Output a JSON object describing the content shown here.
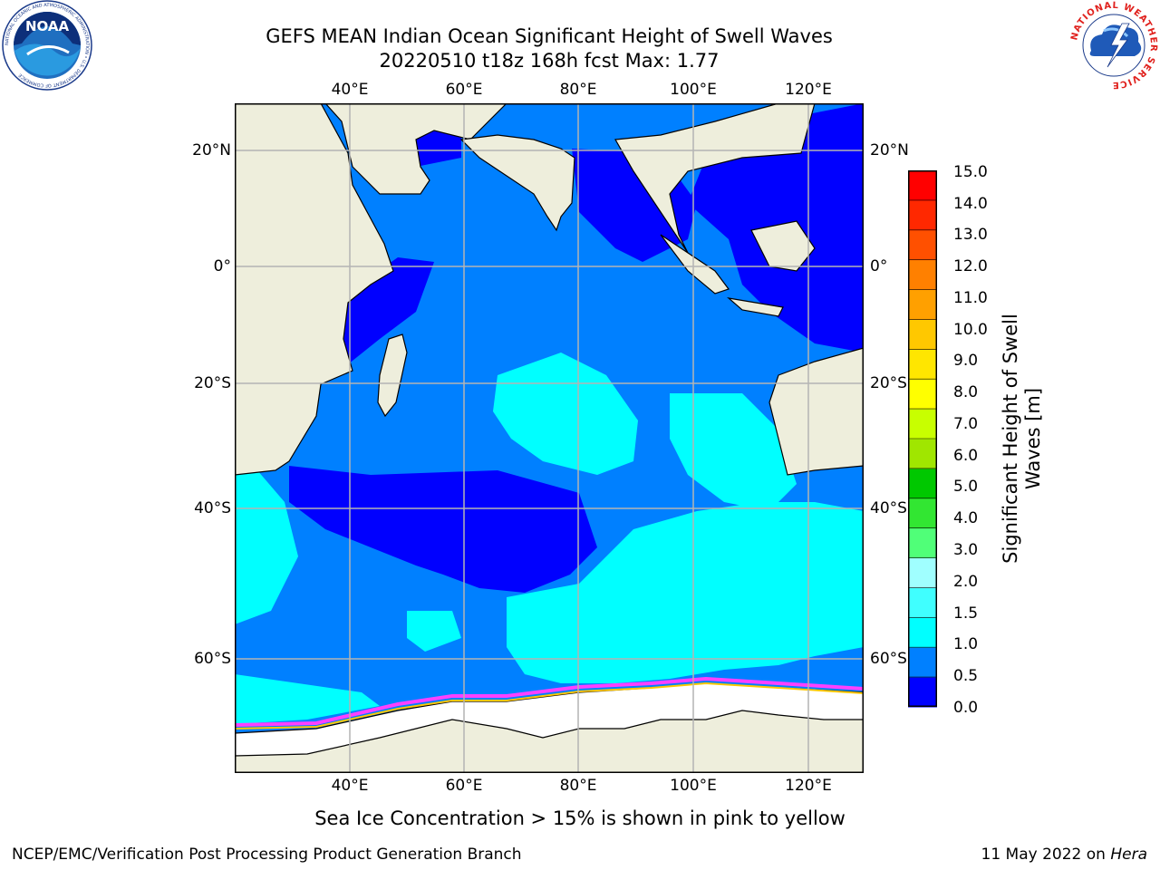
{
  "title": {
    "line1": "GEFS MEAN Indian Ocean Significant Height of Swell Waves",
    "line2": "20220510 t18z 168h fcst   Max: 1.77"
  },
  "longitude_labels": [
    "40°E",
    "60°E",
    "80°E",
    "100°E",
    "120°E"
  ],
  "latitude_labels_left": [
    "20°N",
    "0°",
    "20°S",
    "40°S",
    "60°S"
  ],
  "latitude_labels_right": [
    "20°N",
    "0°",
    "20°S",
    "40°S",
    "60°S"
  ],
  "colorbar": {
    "label_line1": "Significant Height of Swell",
    "label_line2": "Waves [m]",
    "ticks": [
      "15.0",
      "14.0",
      "13.0",
      "12.0",
      "11.0",
      "10.0",
      "9.0",
      "8.0",
      "7.0",
      "6.0",
      "5.0",
      "4.0",
      "3.0",
      "2.0",
      "1.5",
      "1.0",
      "0.5",
      "0.0"
    ],
    "colors_bottom_to_top": [
      "#0000ff",
      "#0080ff",
      "#00ffff",
      "#40ffff",
      "#a0ffff",
      "#50ff78",
      "#32e632",
      "#00c800",
      "#a0e600",
      "#c8ff00",
      "#ffff00",
      "#ffe600",
      "#ffc800",
      "#ffa000",
      "#ff8000",
      "#ff5000",
      "#ff2800",
      "#ff0000"
    ]
  },
  "map_colors": {
    "land": "#eeeedc",
    "ice": "#ffffff",
    "ice_edge": "#ff40ff",
    "swell_0_0p5": "#0000ff",
    "swell_0p5_1": "#0080ff",
    "swell_1_1p5": "#00ffff",
    "grid": "#b4b4b4"
  },
  "annotation": "Sea Ice Concentration > 15% is shown in pink to yellow",
  "footer": {
    "left": "NCEP/EMC/Verification Post Processing Product Generation Branch",
    "date": "11 May 2022 on ",
    "machine": "Hera"
  },
  "logos": {
    "noaa": {
      "icon": "noaa-logo",
      "text": "NOAA",
      "ring": "NATIONAL OCEANIC AND ATMOSPHERIC ADMINISTRATION • U.S. DEPARTMENT OF COMMERCE"
    },
    "nws": {
      "icon": "nws-logo",
      "ring": "NATIONAL WEATHER SERVICE"
    }
  }
}
